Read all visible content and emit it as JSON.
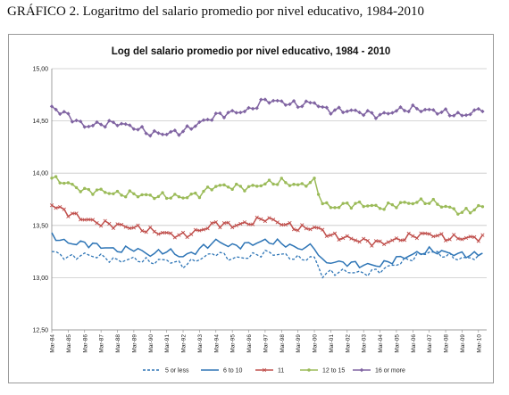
{
  "page": {
    "heading": "GRÁFICO 2. Logaritmo del salario promedio por nivel educativo, 1984-2010"
  },
  "chart_data": {
    "type": "line",
    "title": "Log del salario promedio por nivel educativo, 1984 - 2010",
    "xlabel": "",
    "ylabel": "",
    "ylim": [
      12.5,
      15.0
    ],
    "yticks": [
      "15,00",
      "14,50",
      "14,00",
      "13,50",
      "13,00",
      "12,50"
    ],
    "ytick_values": [
      15.0,
      14.5,
      14.0,
      13.5,
      13.0,
      12.5
    ],
    "xticks": [
      "Mar-84",
      "Mar-85",
      "Mar-86",
      "Mar-87",
      "Mar-88",
      "Mar-89",
      "Mar-90",
      "Mar-91",
      "Mar-92",
      "Mar-93",
      "Mar-94",
      "Mar-95",
      "Mar-96",
      "Mar-97",
      "Mar-98",
      "Mar-99",
      "Mar-00",
      "Mar-01",
      "Mar-02",
      "Mar-03",
      "Mar-04",
      "Mar-05",
      "Mar-06",
      "Mar-07",
      "Mar-08",
      "Mar-09",
      "Mar-10"
    ],
    "grid": true,
    "legend_position": "bottom",
    "series": [
      {
        "name": "5 or less",
        "color": "#2e75b6",
        "style": "dashed",
        "marker": "none",
        "x": [
          1984.0,
          1985.0,
          1986.0,
          1987.0,
          1988.0,
          1989.0,
          1990.0,
          1991.0,
          1992.0,
          1993.0,
          1994.0,
          1995.0,
          1996.0,
          1997.0,
          1998.0,
          1999.0,
          2000.0,
          2000.5,
          2001.0,
          2002.0,
          2003.0,
          2004.0,
          2005.0,
          2006.0,
          2007.0,
          2008.0,
          2009.0,
          2010.0,
          2010.3
        ],
        "values": [
          13.25,
          13.19,
          13.22,
          13.2,
          13.16,
          13.18,
          13.15,
          13.17,
          13.12,
          13.18,
          13.24,
          13.18,
          13.2,
          13.24,
          13.22,
          13.18,
          13.19,
          13.02,
          13.05,
          13.06,
          13.04,
          13.07,
          13.13,
          13.19,
          13.25,
          13.21,
          13.18,
          13.2,
          13.22
        ]
      },
      {
        "name": "6 to 10",
        "color": "#2e75b6",
        "style": "solid",
        "marker": "none",
        "x": [
          1984.0,
          1985.0,
          1986.0,
          1987.0,
          1988.0,
          1989.0,
          1990.0,
          1991.0,
          1992.0,
          1993.0,
          1994.0,
          1995.0,
          1996.0,
          1997.0,
          1998.0,
          1999.0,
          2000.0,
          2000.5,
          2001.0,
          2002.0,
          2003.0,
          2004.0,
          2005.0,
          2006.0,
          2007.0,
          2008.0,
          2009.0,
          2010.0,
          2010.3
        ],
        "values": [
          13.4,
          13.33,
          13.33,
          13.3,
          13.26,
          13.28,
          13.22,
          13.26,
          13.2,
          13.27,
          13.35,
          13.3,
          13.32,
          13.35,
          13.33,
          13.28,
          13.3,
          13.15,
          13.15,
          13.14,
          13.12,
          13.12,
          13.18,
          13.22,
          13.26,
          13.24,
          13.22,
          13.22,
          13.25
        ]
      },
      {
        "name": "11",
        "color": "#c0504d",
        "style": "solid",
        "marker": "x",
        "x": [
          1984.0,
          1985.0,
          1986.0,
          1987.0,
          1988.0,
          1989.0,
          1990.0,
          1991.0,
          1992.0,
          1993.0,
          1994.0,
          1995.0,
          1996.0,
          1997.0,
          1998.0,
          1999.0,
          2000.0,
          2000.5,
          2001.0,
          2002.0,
          2003.0,
          2004.0,
          2005.0,
          2006.0,
          2007.0,
          2008.0,
          2009.0,
          2010.0,
          2010.3
        ],
        "values": [
          13.7,
          13.62,
          13.56,
          13.52,
          13.5,
          13.48,
          13.45,
          13.42,
          13.4,
          13.45,
          13.52,
          13.5,
          13.52,
          13.57,
          13.52,
          13.47,
          13.48,
          13.45,
          13.4,
          13.38,
          13.35,
          13.33,
          13.36,
          13.4,
          13.42,
          13.38,
          13.38,
          13.38,
          13.4
        ]
      },
      {
        "name": "12 to 15",
        "color": "#9bbb59",
        "style": "solid",
        "marker": "circle",
        "x": [
          1984.0,
          1985.0,
          1986.0,
          1987.0,
          1988.0,
          1989.0,
          1990.0,
          1991.0,
          1992.0,
          1993.0,
          1994.0,
          1995.0,
          1996.0,
          1997.0,
          1998.0,
          1999.0,
          2000.0,
          2000.5,
          2001.0,
          2002.0,
          2003.0,
          2004.0,
          2005.0,
          2006.0,
          2007.0,
          2008.0,
          2009.0,
          2010.0,
          2010.3
        ],
        "values": [
          13.95,
          13.9,
          13.83,
          13.83,
          13.8,
          13.8,
          13.78,
          13.78,
          13.77,
          13.8,
          13.88,
          13.87,
          13.86,
          13.9,
          13.92,
          13.88,
          13.92,
          13.72,
          13.67,
          13.7,
          13.7,
          13.67,
          13.7,
          13.72,
          13.73,
          13.68,
          13.62,
          13.67,
          13.68
        ]
      },
      {
        "name": "16 or more",
        "color": "#8064a2",
        "style": "solid",
        "marker": "diamond",
        "x": [
          1984.0,
          1985.0,
          1986.0,
          1987.0,
          1988.0,
          1989.0,
          1990.0,
          1991.0,
          1992.0,
          1993.0,
          1994.0,
          1995.0,
          1996.0,
          1997.0,
          1998.0,
          1999.0,
          2000.0,
          2000.5,
          2001.0,
          2002.0,
          2003.0,
          2004.0,
          2005.0,
          2006.0,
          2007.0,
          2008.0,
          2009.0,
          2010.0,
          2010.3
        ],
        "values": [
          14.63,
          14.55,
          14.45,
          14.47,
          14.48,
          14.44,
          14.38,
          14.38,
          14.4,
          14.48,
          14.55,
          14.58,
          14.6,
          14.7,
          14.68,
          14.65,
          14.68,
          14.62,
          14.6,
          14.6,
          14.58,
          14.55,
          14.6,
          14.62,
          14.6,
          14.58,
          14.55,
          14.6,
          14.63
        ]
      }
    ]
  }
}
